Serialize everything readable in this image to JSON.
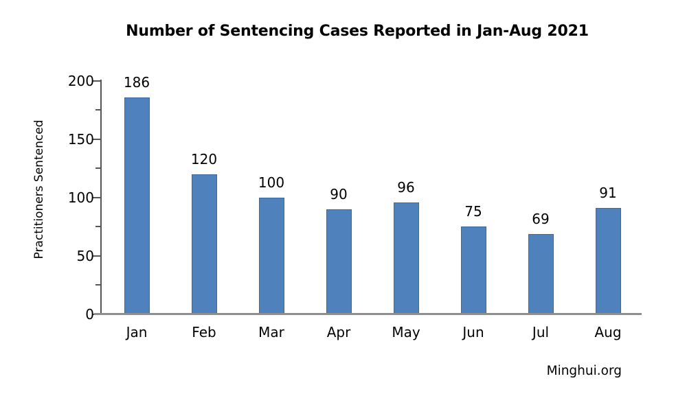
{
  "title": "Number of Sentencing Cases Reported in Jan-Aug 2021",
  "watermark": "Minghui.org",
  "chart_data": {
    "type": "bar",
    "title": "Number of Sentencing Cases Reported in Jan-Aug 2021",
    "categories": [
      "Jan",
      "Feb",
      "Mar",
      "Apr",
      "May",
      "Jun",
      "Jul",
      "Aug"
    ],
    "values": [
      186,
      120,
      100,
      90,
      96,
      75,
      69,
      91
    ],
    "xlabel": "",
    "ylabel": "Practitioners Sentenced",
    "ylim": [
      0,
      200
    ],
    "yticks_major": [
      0,
      50,
      100,
      150,
      200
    ],
    "yticks_minor": [
      25,
      75,
      125,
      175
    ],
    "grid": false,
    "legend": "none",
    "data_labels": true,
    "source_label": "Minghui.org",
    "colors": {
      "bar_fill": "#4f81bd",
      "bar_border": "#3a68a0",
      "axis_line": "#555555",
      "baseline": "#8e8e8e",
      "text": "#000000",
      "background": "#ffffff"
    }
  }
}
